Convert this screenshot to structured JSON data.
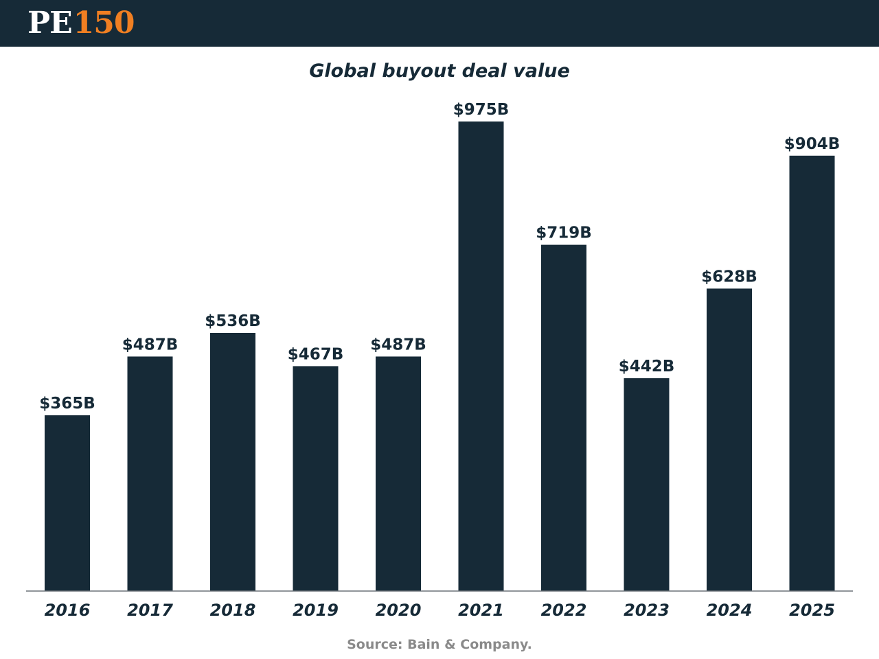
{
  "header": {
    "logo_pe": "PE",
    "logo_number": "150"
  },
  "colors": {
    "brand_dark": "#162a37",
    "brand_orange": "#f07f22",
    "bar": "#162a37",
    "source_text": "#8a8a8a"
  },
  "chart_data": {
    "type": "bar",
    "title": "Global buyout deal value",
    "xlabel": "",
    "ylabel": "",
    "ylim": [
      0,
      1000
    ],
    "categories": [
      "2016",
      "2017",
      "2018",
      "2019",
      "2020",
      "2021",
      "2022",
      "2023",
      "2024",
      "2025"
    ],
    "values": [
      365,
      487,
      536,
      467,
      487,
      975,
      719,
      442,
      628,
      904
    ],
    "data_labels": [
      "$365B",
      "$487B",
      "$536B",
      "$467B",
      "$487B",
      "$975B",
      "$719B",
      "$442B",
      "$628B",
      "$904B"
    ],
    "units": "USD billions",
    "grid": false,
    "legend": "none"
  },
  "footer": {
    "source": "Source: Bain & Company."
  }
}
